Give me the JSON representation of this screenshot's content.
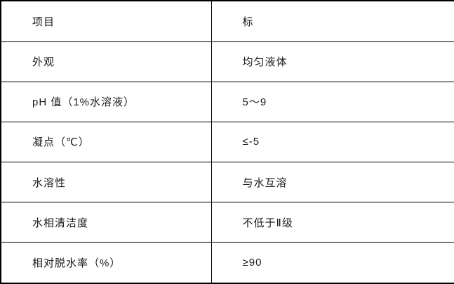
{
  "table": {
    "header": {
      "item_label": "项目",
      "value_label": "标"
    },
    "rows": [
      {
        "item": "外观",
        "value": "均匀液体"
      },
      {
        "item": "pH 值（1%水溶液）",
        "value": "5～9"
      },
      {
        "item": "凝点（℃）",
        "value": "≤-5"
      },
      {
        "item": "水溶性",
        "value": "与水互溶"
      },
      {
        "item": "水相清洁度",
        "value": "不低于Ⅱ级"
      },
      {
        "item": "相对脱水率（%）",
        "value": "≥90"
      }
    ]
  },
  "colors": {
    "border": "#000000",
    "text": "#1a1a1a",
    "background": "#ffffff"
  }
}
